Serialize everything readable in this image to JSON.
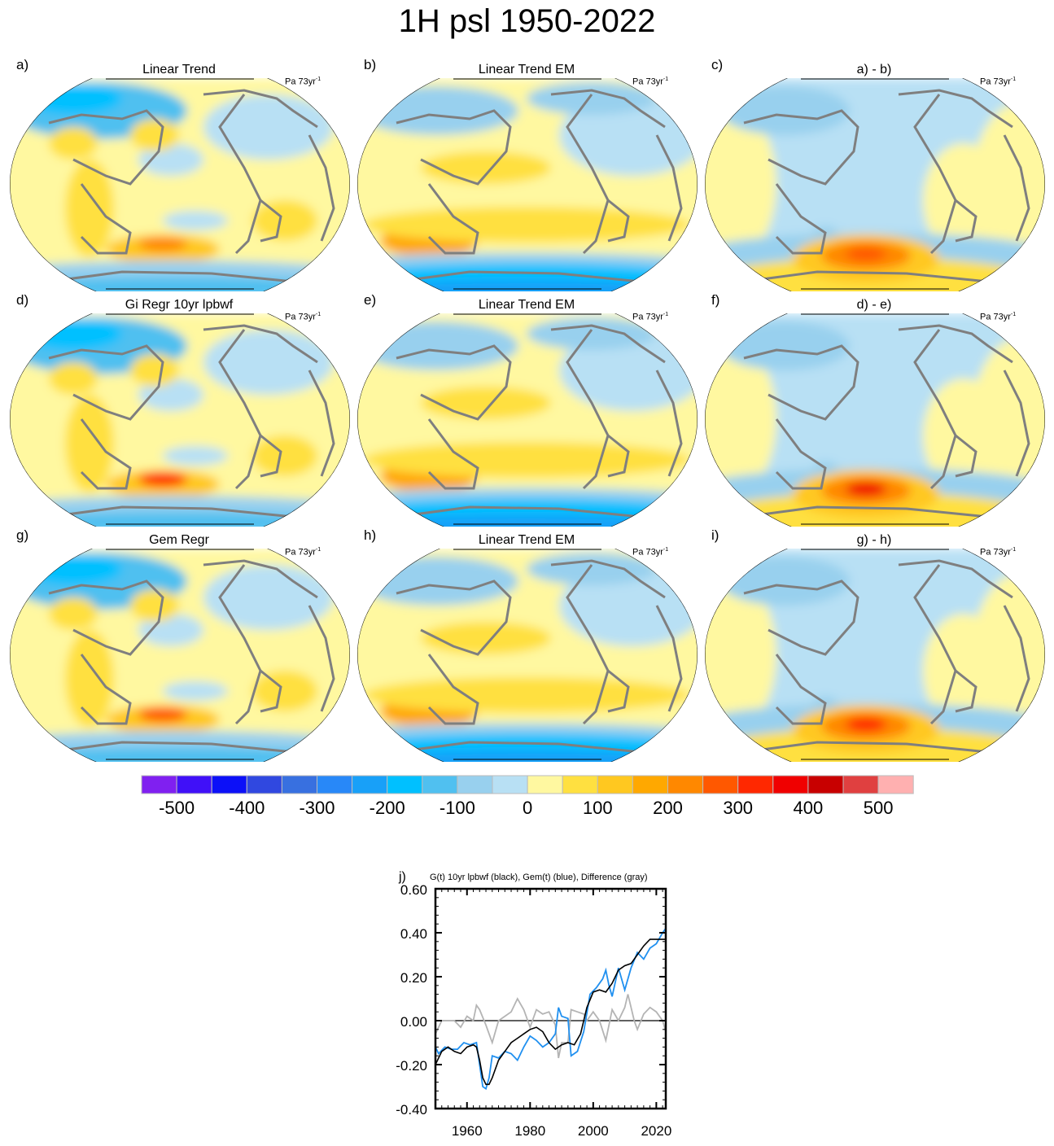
{
  "title": "1H psl 1950-2022",
  "panels": [
    {
      "label": "a)",
      "title": "Linear Trend",
      "units": "Pa 73yr",
      "pattern": "total",
      "peak": 200
    },
    {
      "label": "b)",
      "title": "Linear Trend EM",
      "units": "Pa 73yr",
      "pattern": "forced",
      "peak": 150
    },
    {
      "label": "c)",
      "title": "a) - b)",
      "units": "Pa 73yr",
      "pattern": "diff",
      "peak": 250
    },
    {
      "label": "d)",
      "title": "Gi Regr 10yr lpbwf",
      "units": "Pa 73yr",
      "pattern": "total",
      "peak": 300
    },
    {
      "label": "e)",
      "title": "Linear Trend EM",
      "units": "Pa 73yr",
      "pattern": "forced",
      "peak": 150
    },
    {
      "label": "f)",
      "title": "d) - e)",
      "units": "Pa 73yr",
      "pattern": "diff",
      "peak": 350
    },
    {
      "label": "g)",
      "title": "Gem Regr",
      "units": "Pa 73yr",
      "pattern": "total",
      "peak": 250
    },
    {
      "label": "h)",
      "title": "Linear Trend EM",
      "units": "Pa 73yr",
      "pattern": "forced",
      "peak": 150
    },
    {
      "label": "i)",
      "title": "g) - h)",
      "units": "Pa 73yr",
      "pattern": "diff",
      "peak": 300
    }
  ],
  "units_exponent": "-1",
  "colorbar": {
    "levels": [
      -550,
      -500,
      -450,
      -400,
      -350,
      -300,
      -250,
      -200,
      -150,
      -100,
      -50,
      0,
      50,
      100,
      150,
      200,
      250,
      300,
      350,
      400,
      450,
      500,
      550
    ],
    "colors": [
      "#8020f0",
      "#4010f8",
      "#0c10f8",
      "#3048e0",
      "#3870e0",
      "#2888f8",
      "#18a0f8",
      "#00c0ff",
      "#50c0f0",
      "#98d0ee",
      "#b8e0f4",
      "#fff8a0",
      "#ffe040",
      "#ffc820",
      "#ffa800",
      "#ff8800",
      "#ff5800",
      "#ff2800",
      "#f00000",
      "#c80000",
      "#e04040",
      "#ffb0b0"
    ],
    "tick_labels": [
      "-500",
      "-400",
      "-300",
      "-200",
      "-100",
      "0",
      "100",
      "200",
      "300",
      "400",
      "500"
    ]
  },
  "chart_data": [
    {
      "type": "line",
      "label": "j)",
      "title": "G(t)  10yr lpbwf (black), Gem(t) (blue), Difference (gray)",
      "xlim": [
        1950,
        2023
      ],
      "ylim": [
        -0.4,
        0.6
      ],
      "yticks": [
        "-0.40",
        "-0.20",
        "0.00",
        "0.20",
        "0.40",
        "0.60"
      ],
      "xticks": [
        "1960",
        "1980",
        "2000",
        "2020"
      ],
      "zero_line": true,
      "series": [
        {
          "color": "#000000",
          "x": [
            1950,
            1952,
            1954,
            1956,
            1958,
            1960,
            1962,
            1963,
            1964,
            1965,
            1966,
            1967,
            1968,
            1970,
            1972,
            1974,
            1976,
            1978,
            1980,
            1982,
            1984,
            1986,
            1988,
            1990,
            1992,
            1994,
            1996,
            1998,
            2000,
            2002,
            2004,
            2006,
            2008,
            2010,
            2012,
            2014,
            2016,
            2018,
            2020,
            2023
          ],
          "y": [
            -0.2,
            -0.14,
            -0.12,
            -0.14,
            -0.15,
            -0.12,
            -0.11,
            -0.12,
            -0.18,
            -0.26,
            -0.29,
            -0.29,
            -0.26,
            -0.18,
            -0.14,
            -0.1,
            -0.08,
            -0.06,
            -0.04,
            -0.03,
            -0.05,
            -0.1,
            -0.13,
            -0.11,
            -0.1,
            -0.11,
            -0.06,
            0.06,
            0.13,
            0.14,
            0.13,
            0.17,
            0.23,
            0.25,
            0.26,
            0.3,
            0.34,
            0.37,
            0.37,
            0.37
          ]
        },
        {
          "color": "#2090f0",
          "x": [
            1950,
            1951,
            1953,
            1955,
            1957,
            1959,
            1961,
            1963,
            1964,
            1965,
            1966,
            1967,
            1968,
            1970,
            1972,
            1974,
            1976,
            1978,
            1980,
            1982,
            1984,
            1986,
            1988,
            1989,
            1990,
            1992,
            1993,
            1995,
            1997,
            1999,
            2001,
            2003,
            2004,
            2005,
            2006,
            2008,
            2010,
            2012,
            2014,
            2016,
            2018,
            2020,
            2022,
            2023
          ],
          "y": [
            -0.12,
            -0.15,
            -0.12,
            -0.13,
            -0.13,
            -0.1,
            -0.11,
            -0.1,
            -0.2,
            -0.3,
            -0.31,
            -0.26,
            -0.16,
            -0.17,
            -0.14,
            -0.15,
            -0.18,
            -0.12,
            -0.07,
            -0.09,
            -0.12,
            -0.1,
            -0.06,
            0.06,
            0.02,
            0.01,
            -0.16,
            -0.14,
            -0.05,
            0.12,
            0.15,
            0.19,
            0.23,
            0.16,
            0.11,
            0.24,
            0.14,
            0.24,
            0.31,
            0.28,
            0.33,
            0.35,
            0.4,
            0.42
          ]
        },
        {
          "color": "#b4b4b4",
          "x": [
            1950,
            1952,
            1954,
            1956,
            1958,
            1960,
            1962,
            1963,
            1964,
            1966,
            1968,
            1970,
            1972,
            1974,
            1976,
            1978,
            1980,
            1982,
            1984,
            1986,
            1988,
            1989,
            1990,
            1992,
            1993,
            1995,
            1997,
            1998,
            2000,
            2002,
            2004,
            2006,
            2008,
            2010,
            2011,
            2013,
            2014,
            2016,
            2018,
            2020,
            2022,
            2023
          ],
          "y": [
            -0.06,
            0.0,
            0.0,
            0.0,
            -0.03,
            0.02,
            0.0,
            0.07,
            0.05,
            -0.02,
            -0.1,
            0.0,
            0.02,
            0.04,
            0.1,
            0.05,
            -0.03,
            0.05,
            0.03,
            0.04,
            -0.02,
            -0.17,
            -0.1,
            -0.1,
            0.05,
            0.04,
            0.03,
            0.0,
            0.04,
            0.0,
            -0.09,
            0.05,
            0.0,
            0.06,
            0.12,
            0.0,
            -0.04,
            0.03,
            0.06,
            0.04,
            0.0,
            -0.05
          ]
        }
      ]
    }
  ]
}
